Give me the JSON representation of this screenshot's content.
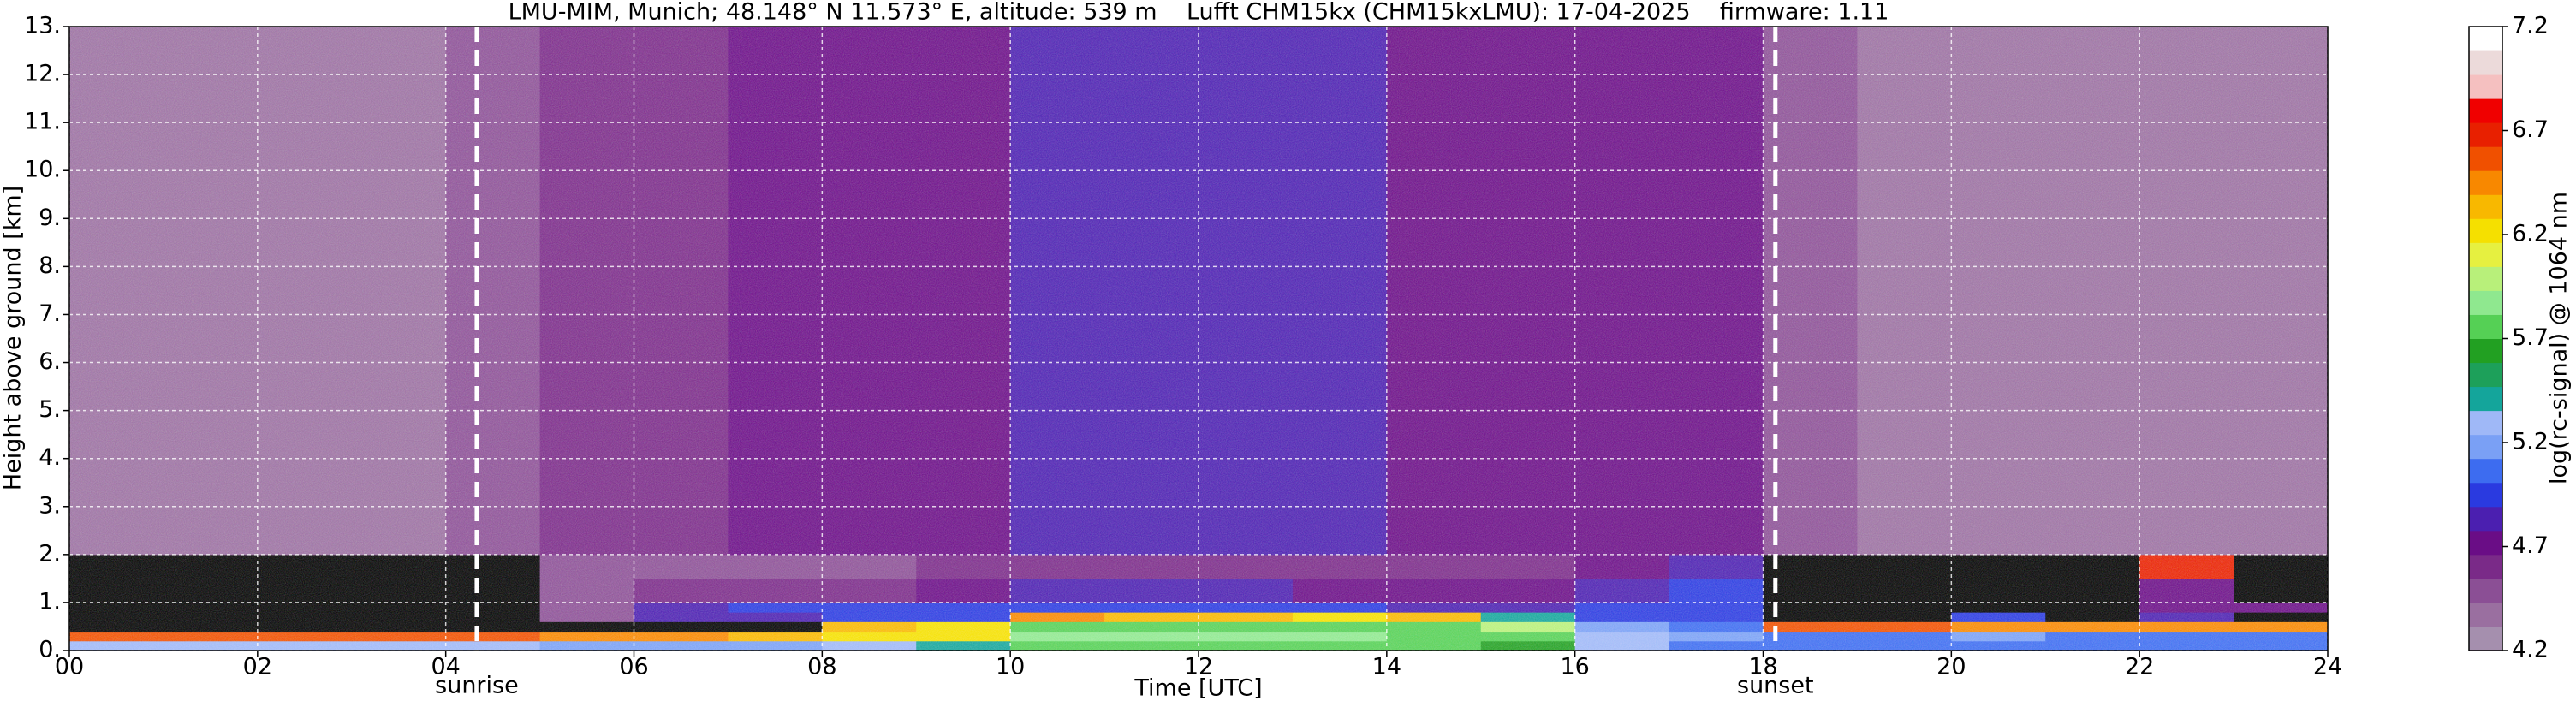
{
  "chart_data": {
    "type": "heatmap",
    "title": "LMU-MIM, Munich; 48.148° N 11.573° E, altitude: 539 m    Lufft CHM15kx (CHM15kxLMU): 17-04-2025    firmware: 1.11",
    "xlabel": "Time [UTC]",
    "ylabel": "Height above ground [km]",
    "colorbar_label": "log(rc-signal) @ 1064 nm",
    "xlim": [
      0,
      24
    ],
    "xticks": [
      {
        "value": 0,
        "label": "00"
      },
      {
        "value": 2,
        "label": "02"
      },
      {
        "value": 4,
        "label": "04"
      },
      {
        "value": 6,
        "label": "06"
      },
      {
        "value": 8,
        "label": "08"
      },
      10,
      12,
      14,
      16,
      18,
      20,
      22,
      24
    ],
    "ylim": [
      0,
      13
    ],
    "yticks": [
      {
        "value": 0,
        "label": "0."
      },
      {
        "value": 1,
        "label": "1."
      },
      {
        "value": 2,
        "label": "2."
      },
      {
        "value": 3,
        "label": "3."
      },
      {
        "value": 4,
        "label": "4."
      },
      {
        "value": 5,
        "label": "5."
      },
      {
        "value": 6,
        "label": "6."
      },
      {
        "value": 7,
        "label": "7."
      },
      {
        "value": 8,
        "label": "8."
      },
      {
        "value": 9,
        "label": "9."
      },
      {
        "value": 10,
        "label": "10."
      },
      {
        "value": 11,
        "label": "11."
      },
      {
        "value": 12,
        "label": "12."
      },
      {
        "value": 13,
        "label": "13."
      }
    ],
    "grid": true,
    "x_edges": [
      0,
      1,
      2,
      3,
      4,
      5,
      6,
      7,
      8,
      9,
      10,
      11,
      12,
      13,
      14,
      15,
      16,
      17,
      18,
      19,
      20,
      21,
      22,
      23,
      24
    ],
    "y_edges": [
      0,
      0.2,
      0.4,
      0.6,
      0.8,
      1.0,
      1.5,
      2.0,
      13
    ],
    "z": [
      [
        5.3,
        5.3,
        5.3,
        5.3,
        5.3,
        5.2,
        5.2,
        5.2,
        5.3,
        5.4,
        5.7,
        5.8,
        5.8,
        5.8,
        5.7,
        5.6,
        5.3,
        5.1,
        5.1,
        5.1,
        5.1,
        5.1,
        5.1,
        5.1
      ],
      [
        6.6,
        6.6,
        6.6,
        6.6,
        6.6,
        6.4,
        6.4,
        6.3,
        6.2,
        6.2,
        5.9,
        5.9,
        5.9,
        5.9,
        5.8,
        5.7,
        5.3,
        5.2,
        5.1,
        5.1,
        5.2,
        5.1,
        5.1,
        5.1
      ],
      [
        null,
        null,
        null,
        null,
        null,
        null,
        null,
        null,
        6.3,
        6.2,
        5.8,
        5.7,
        5.8,
        5.8,
        5.7,
        6.0,
        5.2,
        5.1,
        6.6,
        6.6,
        6.5,
        6.5,
        6.4,
        6.5
      ],
      [
        null,
        null,
        null,
        null,
        null,
        4.5,
        4.8,
        4.8,
        4.9,
        5.0,
        6.4,
        6.3,
        6.3,
        6.2,
        6.3,
        5.4,
        5.0,
        4.9,
        null,
        null,
        5.0,
        null,
        4.8,
        null
      ],
      [
        null,
        null,
        null,
        null,
        null,
        4.5,
        4.8,
        5.0,
        5.0,
        5.0,
        5.0,
        4.9,
        4.9,
        4.9,
        4.8,
        4.8,
        4.9,
        4.9,
        null,
        null,
        null,
        null,
        4.7,
        4.7
      ],
      [
        null,
        null,
        null,
        null,
        null,
        4.5,
        4.6,
        4.6,
        4.6,
        4.7,
        4.8,
        4.8,
        4.8,
        4.7,
        4.7,
        4.7,
        4.8,
        4.9,
        null,
        null,
        null,
        null,
        4.7,
        null
      ],
      [
        null,
        null,
        null,
        null,
        null,
        4.5,
        4.5,
        4.5,
        4.5,
        4.6,
        4.6,
        4.6,
        4.6,
        4.6,
        4.6,
        4.6,
        4.7,
        4.8,
        null,
        null,
        null,
        null,
        6.7,
        null
      ],
      [
        4.4,
        4.4,
        4.4,
        4.4,
        4.5,
        4.6,
        4.6,
        4.7,
        4.7,
        4.7,
        4.8,
        4.8,
        4.8,
        4.8,
        4.7,
        4.7,
        4.7,
        4.7,
        4.5,
        4.4,
        4.4,
        4.4,
        4.4,
        4.4
      ]
    ],
    "missing_color": "#000000",
    "clim": [
      4.2,
      7.2
    ],
    "cticks": [
      4.2,
      4.7,
      5.2,
      5.7,
      6.2,
      6.7,
      7.2
    ],
    "colors": [
      "#a58fae",
      "#9a6fa0",
      "#8b4f95",
      "#7a2a88",
      "#6a0d86",
      "#4b1fb0",
      "#2a3ae0",
      "#3d6cf0",
      "#7aa0f5",
      "#9fb8f7",
      "#14a59b",
      "#1da05a",
      "#22a022",
      "#55d055",
      "#8fe88f",
      "#b8f07a",
      "#e6f040",
      "#f5e000",
      "#f8b800",
      "#f88800",
      "#f05000",
      "#e82000",
      "#f00000",
      "#f5c0c0",
      "#ecdada",
      "#ffffff"
    ],
    "vlines": [
      {
        "x": 4.33,
        "label": "sunrise"
      },
      {
        "x": 18.13,
        "label": "sunset"
      }
    ]
  }
}
